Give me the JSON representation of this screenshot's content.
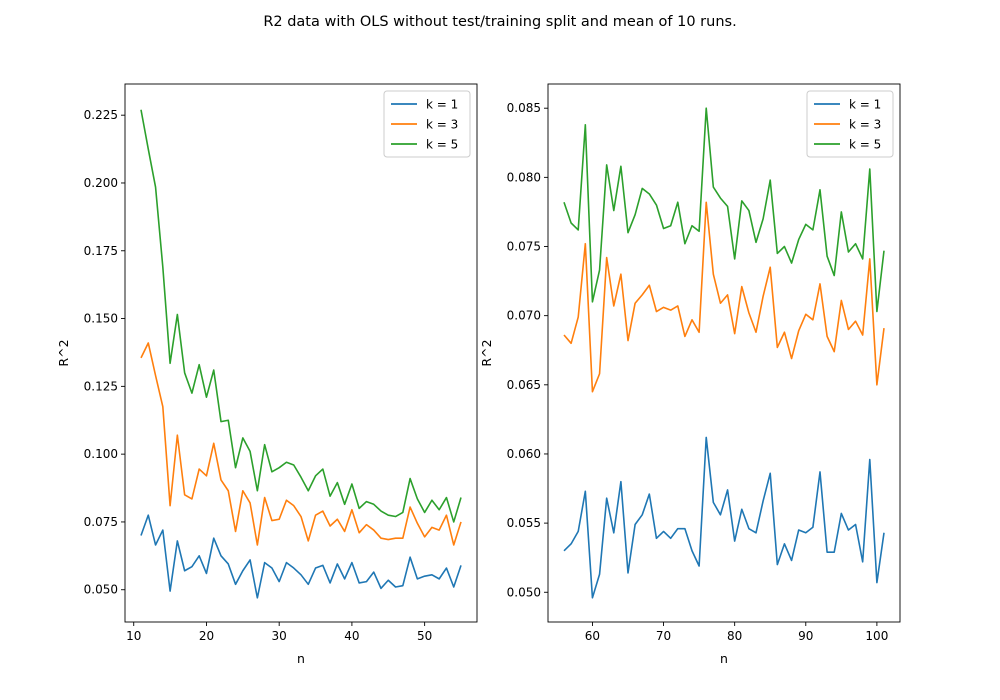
{
  "figure": {
    "suptitle": "R2 data with OLS without test/training split and mean of 10 runs."
  },
  "colors": {
    "k1": "#1f77b4",
    "k3": "#ff7f0e",
    "k5": "#2ca02c"
  },
  "chart_data": [
    {
      "type": "line",
      "xlabel": "n",
      "ylabel": "R^2",
      "xlim": [
        8.8,
        57.2
      ],
      "ylim": [
        0.0381,
        0.2365
      ],
      "xticks": [
        10,
        20,
        30,
        40,
        50
      ],
      "yticks": [
        0.05,
        0.075,
        0.1,
        0.125,
        0.15,
        0.175,
        0.2,
        0.225
      ],
      "ytick_labels": [
        "0.050",
        "0.075",
        "0.100",
        "0.125",
        "0.150",
        "0.175",
        "0.200",
        "0.225"
      ],
      "legend": "top-right",
      "x": [
        11,
        12,
        13,
        14,
        15,
        16,
        17,
        18,
        19,
        20,
        21,
        22,
        23,
        24,
        25,
        26,
        27,
        28,
        29,
        30,
        31,
        32,
        33,
        34,
        35,
        36,
        37,
        38,
        39,
        40,
        41,
        42,
        43,
        44,
        45,
        46,
        47,
        48,
        49,
        50,
        51,
        52,
        53,
        54,
        55
      ],
      "series": [
        {
          "name": "k = 1",
          "color": "#1f77b4",
          "values": [
            0.07,
            0.0775,
            0.0665,
            0.072,
            0.0495,
            0.068,
            0.057,
            0.0585,
            0.0625,
            0.056,
            0.069,
            0.0625,
            0.0595,
            0.052,
            0.057,
            0.061,
            0.047,
            0.06,
            0.058,
            0.053,
            0.06,
            0.058,
            0.0555,
            0.052,
            0.058,
            0.059,
            0.0525,
            0.0595,
            0.054,
            0.06,
            0.0525,
            0.053,
            0.0565,
            0.0505,
            0.0535,
            0.051,
            0.0515,
            0.062,
            0.054,
            0.055,
            0.0555,
            0.054,
            0.058,
            0.051,
            0.059
          ]
        },
        {
          "name": "k = 3",
          "color": "#ff7f0e",
          "values": [
            0.1355,
            0.141,
            0.129,
            0.1175,
            0.081,
            0.107,
            0.085,
            0.0835,
            0.0945,
            0.092,
            0.104,
            0.0905,
            0.0865,
            0.0715,
            0.0865,
            0.082,
            0.0665,
            0.084,
            0.0755,
            0.076,
            0.083,
            0.081,
            0.077,
            0.068,
            0.0775,
            0.079,
            0.0735,
            0.076,
            0.0715,
            0.0795,
            0.071,
            0.074,
            0.072,
            0.069,
            0.0685,
            0.069,
            0.069,
            0.0805,
            0.0745,
            0.0695,
            0.073,
            0.072,
            0.0775,
            0.0665,
            0.075
          ]
        },
        {
          "name": "k = 5",
          "color": "#2ca02c",
          "values": [
            0.227,
            0.2125,
            0.1985,
            0.169,
            0.1335,
            0.1515,
            0.13,
            0.1225,
            0.133,
            0.121,
            0.131,
            0.112,
            0.1125,
            0.095,
            0.106,
            0.101,
            0.0865,
            0.1035,
            0.0935,
            0.095,
            0.097,
            0.096,
            0.0915,
            0.0865,
            0.092,
            0.0945,
            0.0845,
            0.0895,
            0.0815,
            0.089,
            0.08,
            0.0825,
            0.0815,
            0.079,
            0.0775,
            0.077,
            0.0785,
            0.091,
            0.0835,
            0.0785,
            0.083,
            0.0795,
            0.084,
            0.075,
            0.084
          ]
        }
      ]
    },
    {
      "type": "line",
      "xlabel": "n",
      "ylabel": "R^2",
      "xlim": [
        53.75,
        103.25
      ],
      "ylim": [
        0.04785,
        0.08675
      ],
      "xticks": [
        60,
        70,
        80,
        90,
        100
      ],
      "yticks": [
        0.05,
        0.055,
        0.06,
        0.065,
        0.07,
        0.075,
        0.08,
        0.085
      ],
      "ytick_labels": [
        "0.050",
        "0.055",
        "0.060",
        "0.065",
        "0.070",
        "0.075",
        "0.080",
        "0.085"
      ],
      "legend": "top-right",
      "x": [
        56,
        57,
        58,
        59,
        60,
        61,
        62,
        63,
        64,
        65,
        66,
        67,
        68,
        69,
        70,
        71,
        72,
        73,
        74,
        75,
        76,
        77,
        78,
        79,
        80,
        81,
        82,
        83,
        84,
        85,
        86,
        87,
        88,
        89,
        90,
        91,
        92,
        93,
        94,
        95,
        96,
        97,
        98,
        99,
        100,
        101
      ],
      "series": [
        {
          "name": "k = 1",
          "color": "#1f77b4",
          "values": [
            0.053,
            0.0535,
            0.0544,
            0.0573,
            0.0496,
            0.0513,
            0.0568,
            0.0543,
            0.058,
            0.0514,
            0.0549,
            0.0556,
            0.0571,
            0.0539,
            0.0544,
            0.0539,
            0.0546,
            0.0546,
            0.053,
            0.0519,
            0.0612,
            0.0565,
            0.0556,
            0.0574,
            0.0537,
            0.056,
            0.0546,
            0.0543,
            0.0566,
            0.0586,
            0.052,
            0.0535,
            0.0523,
            0.0545,
            0.0543,
            0.0547,
            0.0587,
            0.0529,
            0.0529,
            0.0557,
            0.0545,
            0.0549,
            0.0522,
            0.0596,
            0.0507,
            0.0543
          ]
        },
        {
          "name": "k = 3",
          "color": "#ff7f0e",
          "values": [
            0.0686,
            0.068,
            0.0699,
            0.0752,
            0.0645,
            0.0658,
            0.0742,
            0.0707,
            0.073,
            0.0682,
            0.0709,
            0.0715,
            0.0722,
            0.0703,
            0.0706,
            0.0704,
            0.0707,
            0.0685,
            0.0697,
            0.0688,
            0.0782,
            0.073,
            0.0709,
            0.0715,
            0.0687,
            0.0721,
            0.0702,
            0.0688,
            0.0714,
            0.0735,
            0.0677,
            0.0688,
            0.0669,
            0.0689,
            0.0701,
            0.0697,
            0.0723,
            0.0685,
            0.0674,
            0.0711,
            0.069,
            0.0696,
            0.0686,
            0.0741,
            0.065,
            0.0691
          ]
        },
        {
          "name": "k = 5",
          "color": "#2ca02c",
          "values": [
            0.0782,
            0.0767,
            0.0762,
            0.0838,
            0.071,
            0.0733,
            0.0809,
            0.0776,
            0.0808,
            0.076,
            0.0773,
            0.0792,
            0.0788,
            0.078,
            0.0763,
            0.0765,
            0.0782,
            0.0752,
            0.0765,
            0.0761,
            0.085,
            0.0793,
            0.0785,
            0.0779,
            0.0741,
            0.0783,
            0.0776,
            0.0753,
            0.077,
            0.0798,
            0.0745,
            0.075,
            0.0738,
            0.0755,
            0.0766,
            0.0762,
            0.0791,
            0.0743,
            0.0729,
            0.0775,
            0.0746,
            0.0752,
            0.0741,
            0.0806,
            0.0703,
            0.0747
          ]
        }
      ]
    }
  ]
}
